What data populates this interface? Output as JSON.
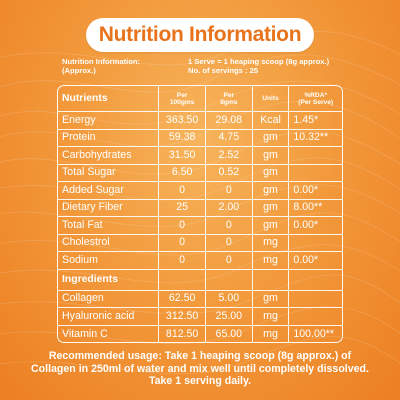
{
  "title": "Nutrition Information",
  "info": {
    "left_line1": "Nutrition Information:",
    "left_line2": "(Approx.)",
    "right_line1": "1 Serve = 1 heaping scoop (8g approx.)",
    "right_line2": "No. of servings : 25"
  },
  "table": {
    "header": {
      "nutrients": "Nutrients",
      "per100_line1": "Per",
      "per100_line2": "100gms",
      "per8_line1": "Per",
      "per8_line2": "8gms",
      "units": "Units",
      "rda_line1": "%RDA*",
      "rda_line2": "(Per Serve)"
    },
    "nutrients": [
      {
        "name": "Energy",
        "per100": "363.50",
        "per8": "29.08",
        "unit": "Kcal",
        "rda": "1.45*"
      },
      {
        "name": "Protein",
        "per100": "59.38",
        "per8": "4.75",
        "unit": "gm",
        "rda": "10.32**"
      },
      {
        "name": "Carbohydrates",
        "per100": "31.50",
        "per8": "2.52",
        "unit": "gm",
        "rda": ""
      },
      {
        "name": "Total Sugar",
        "per100": "6.50",
        "per8": "0.52",
        "unit": "gm",
        "rda": ""
      },
      {
        "name": "Added Sugar",
        "per100": "0",
        "per8": "0",
        "unit": "gm",
        "rda": "0.00*"
      },
      {
        "name": "Dietary Fiber",
        "per100": "25",
        "per8": "2.00",
        "unit": "gm",
        "rda": "8.00**"
      },
      {
        "name": "Total Fat",
        "per100": "0",
        "per8": "0",
        "unit": "gm",
        "rda": "0.00*"
      },
      {
        "name": "Cholestrol",
        "per100": "0",
        "per8": "0",
        "unit": "mg",
        "rda": ""
      },
      {
        "name": "Sodium",
        "per100": "0",
        "per8": "0",
        "unit": "mg",
        "rda": "0.00*"
      }
    ],
    "ingredients_label": "Ingredients",
    "ingredients": [
      {
        "name": "Collagen",
        "per100": "62.50",
        "per8": "5.00",
        "unit": "gm",
        "rda": ""
      },
      {
        "name": "Hyaluronic acid",
        "per100": "312.50",
        "per8": "25.00",
        "unit": "mg",
        "rda": ""
      },
      {
        "name": "Vitamin C",
        "per100": "812.50",
        "per8": "65.00",
        "unit": "mg",
        "rda": "100.00**"
      }
    ]
  },
  "footer": {
    "line1": "Recommended usage:  Take 1 heaping scoop (8g approx.) of",
    "line2": "Collagen in 250ml of water and mix well until completely dissolved.",
    "line3": "Take 1 serving daily."
  }
}
